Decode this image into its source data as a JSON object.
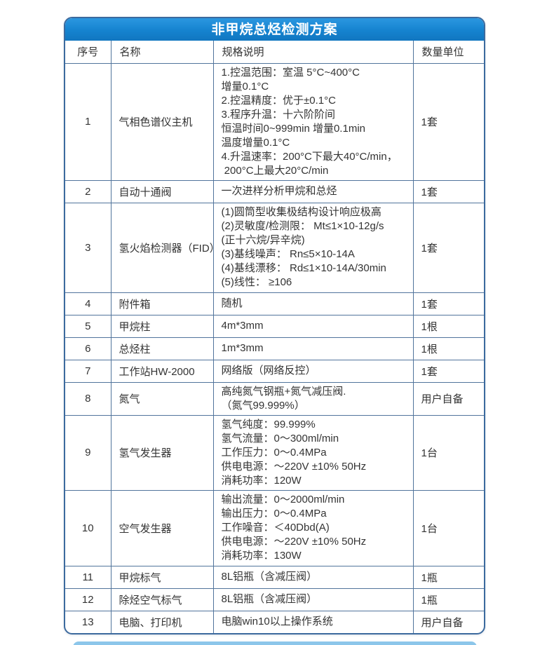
{
  "banner": {
    "title": "非甲烷总烃检测方案"
  },
  "table": {
    "headers": [
      "序号",
      "名称",
      "规格说明",
      "数量单位"
    ],
    "rows": [
      {
        "no": "1",
        "name": "气相色谱仪主机",
        "spec": "1.控温范围：室温 5°C~400°C\n增量0.1°C\n2.控温精度：优于±0.1°C\n3.程序升温：十六阶阶间\n恒温时间0~999min 增量0.1min\n温度增量0.1°C\n4.升温速率：200°C下最大40°C/min，\n 200°C上最大20°C/min",
        "qty": "1套"
      },
      {
        "no": "2",
        "name": "自动十通阀",
        "spec": "一次进样分析甲烷和总烃",
        "qty": "1套"
      },
      {
        "no": "3",
        "name": "氢火焰检测器（FID）",
        "spec": "(1)圆筒型收集极结构设计响应极高\n(2)灵敏度/检测限： Mt≤1×10-12g/s\n(正十六烷/异辛烷)\n(3)基线噪声： Rn≤5×10-14A\n(4)基线漂移： Rd≤1×10-14A/30min\n(5)线性： ≥106",
        "qty": "1套"
      },
      {
        "no": "4",
        "name": "附件箱",
        "spec": "随机",
        "qty": "1套"
      },
      {
        "no": "5",
        "name": "甲烷柱",
        "spec": "4m*3mm",
        "qty": "1根"
      },
      {
        "no": "6",
        "name": "总烃柱",
        "spec": "1m*3mm",
        "qty": "1根"
      },
      {
        "no": "7",
        "name": "工作站HW-2000",
        "spec": "网络版（网络反控）",
        "qty": "1套"
      },
      {
        "no": "8",
        "name": "氮气",
        "spec": "高纯氮气钢瓶+氮气减压阀.\n（氮气99.999%）",
        "qty": "用户自备"
      },
      {
        "no": "9",
        "name": "氢气发生器",
        "spec": "氢气纯度：99.999%\n氢气流量：0～300ml/min\n工作压力：0～0.4MPa\n供电电源：～220V ±10% 50Hz\n消耗功率：120W",
        "qty": "1台"
      },
      {
        "no": "10",
        "name": "空气发生器",
        "spec": "输出流量：0～2000ml/min\n输出压力：0～0.4MPa\n工作噪音：＜40Dbd(A)\n供电电源：～220V ±10% 50Hz\n消耗功率：130W",
        "qty": "1台"
      },
      {
        "no": "11",
        "name": "甲烷标气",
        "spec": "8L铝瓶（含减压阀）",
        "qty": "1瓶"
      },
      {
        "no": "12",
        "name": "除烃空气标气",
        "spec": "8L铝瓶（含减压阀）",
        "qty": "1瓶"
      },
      {
        "no": "13",
        "name": "电脑、打印机",
        "spec": "电脑win10以上操作系统",
        "qty": "用户自备"
      }
    ]
  },
  "colors": {
    "banner_blue": "#1583cf",
    "banner_blue_light": "#2b97e0",
    "frame_border_blue": "#3c6a9e",
    "grid_line_blue": "#51749c",
    "text_dark": "#333333",
    "next_card_edge_blue": "#8cc6ea"
  }
}
